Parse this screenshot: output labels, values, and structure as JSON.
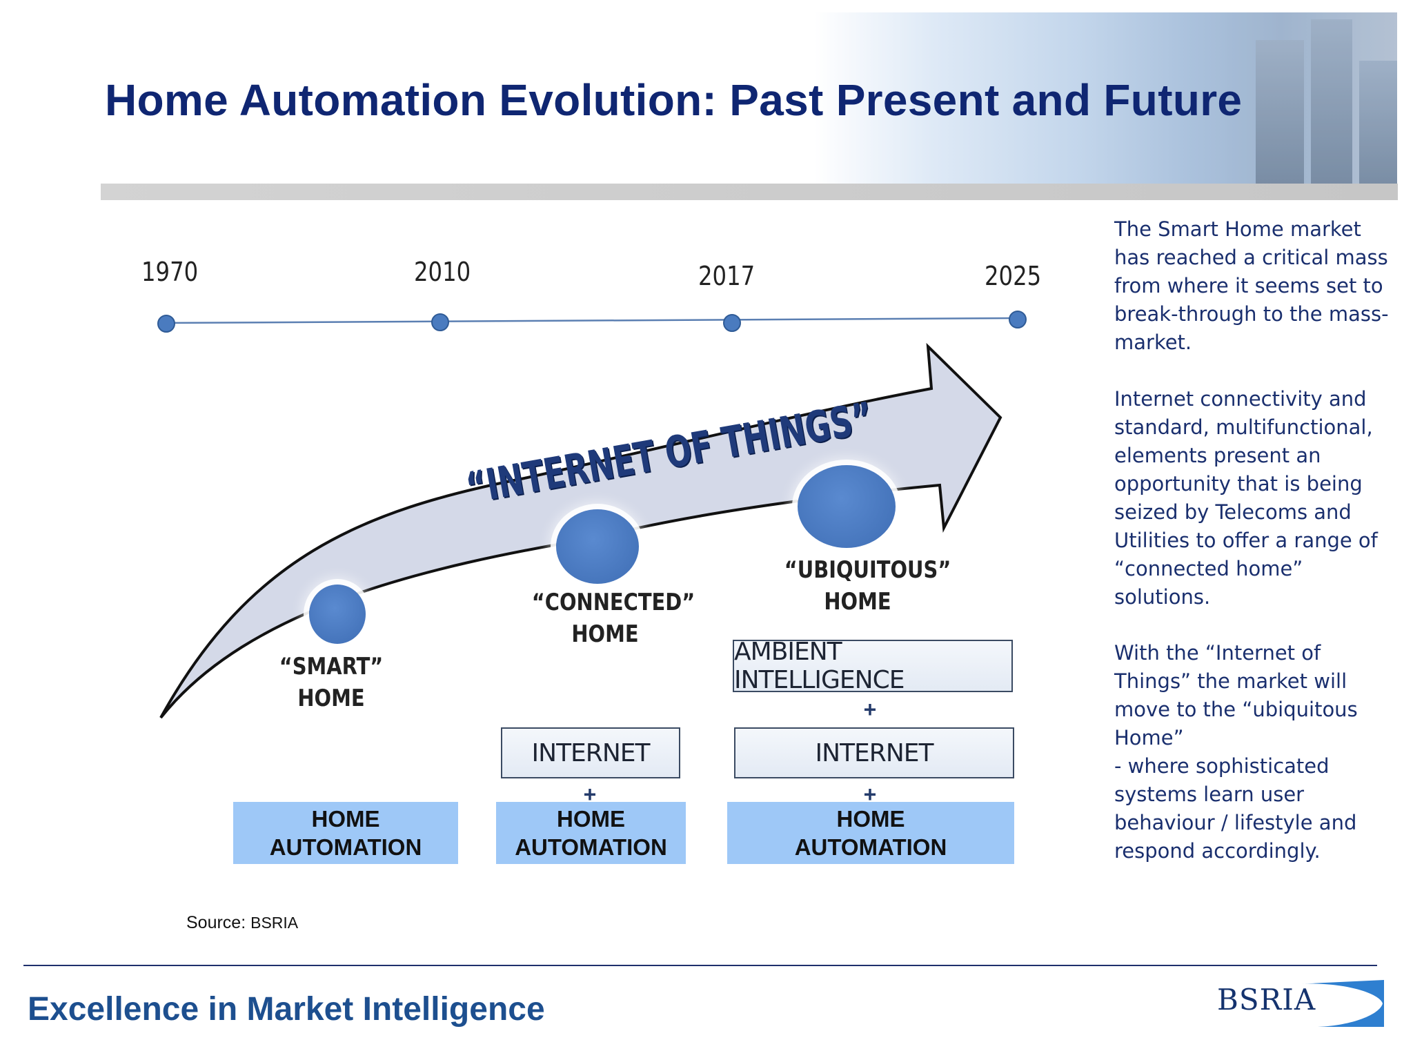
{
  "title": "Home Automation Evolution: Past Present and Future",
  "timeline": {
    "years": [
      "1970",
      "2010",
      "2017",
      "2025"
    ]
  },
  "arrow_label": "“INTERNET OF THINGS”",
  "stages": {
    "smart": {
      "line1": "“SMART”",
      "line2": "HOME"
    },
    "connected": {
      "line1": "“CONNECTED”",
      "line2": "HOME"
    },
    "ubiquitous": {
      "line1": "“UBIQUITOUS”",
      "line2": "HOME"
    }
  },
  "boxes": {
    "ambient": "AMBIENT INTELLIGENCE",
    "internet": "INTERNET",
    "plus": "+",
    "home_automation_line1": "HOME",
    "home_automation_line2": "AUTOMATION"
  },
  "side_text": {
    "p1": "The Smart Home market has reached a critical mass from where it seems set to break-through to the mass-market.",
    "p2": "Internet connectivity and standard, multifunctional, elements present an opportunity that is being seized by Telecoms and Utilities to offer a range of “connected home” solutions.",
    "p3": "With the “Internet of Things” the market will move to the “ubiquitous Home”",
    "p4": "- where sophisticated systems learn user behaviour / lifestyle and respond accordingly."
  },
  "source": {
    "label": "Source:",
    "name": "BSRIA"
  },
  "footer": {
    "tagline": "Excellence in Market Intelligence",
    "logo_text": "BSRIA"
  },
  "colors": {
    "title": "#0f2672",
    "footer_text": "#1d4f8f",
    "timeline_dot": "#4a7bbf",
    "home_automation_box": "#9ec8f7",
    "arrow_fill": "#d4d9e8"
  }
}
